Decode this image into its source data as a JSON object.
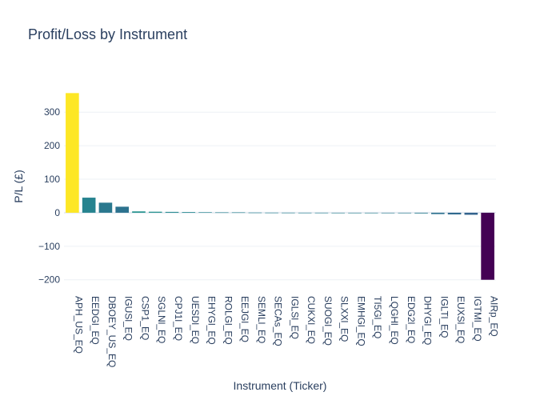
{
  "chart_data": {
    "type": "bar",
    "title": "Profit/Loss by Instrument",
    "xlabel": "Instrument (Ticker)",
    "ylabel": "P/L (£)",
    "ylim": [
      -215,
      365
    ],
    "yticks": [
      -200,
      -100,
      0,
      100,
      200,
      300
    ],
    "ytick_labels": [
      "−200",
      "−100",
      "0",
      "100",
      "200",
      "300"
    ],
    "grid": true,
    "categories": [
      "APH_US_EQ",
      "EEDGl_EQ",
      "DBOEY_US_EQ",
      "IGUSl_EQ",
      "CSP1_EQ",
      "SGLNl_EQ",
      "CPJ1l_EQ",
      "UESDl_EQ",
      "EHYGl_EQ",
      "ROLGl_EQ",
      "EEJGl_EQ",
      "SEMLl_EQ",
      "SECAs_EQ",
      "IGLSl_EQ",
      "CUKXl_EQ",
      "SUOGl_EQ",
      "SLXXl_EQ",
      "EMHGl_EQ",
      "TI5Gl_EQ",
      "LQGHl_EQ",
      "EDG2l_EQ",
      "DHYGl_EQ",
      "IGLTl_EQ",
      "EUXSl_EQ",
      "IGTMl_EQ",
      "AIRp_EQ"
    ],
    "values": [
      357,
      45,
      30,
      18,
      4,
      3,
      2.5,
      2,
      1.5,
      1,
      1,
      0.5,
      0.3,
      0.2,
      0.1,
      0.1,
      -0.2,
      -0.3,
      -0.5,
      -1,
      -1.5,
      -2,
      -4,
      -5,
      -6,
      -200
    ],
    "colors": [
      "#fde725",
      "#26838f",
      "#2a788e",
      "#2c728e",
      "#21918c",
      "#22908c",
      "#23898e",
      "#23888e",
      "#24868e",
      "#25858e",
      "#25848e",
      "#26828e",
      "#26828e",
      "#26828e",
      "#26828e",
      "#26828e",
      "#26818e",
      "#26818e",
      "#27808e",
      "#277f8e",
      "#287d8e",
      "#297b8e",
      "#2d718e",
      "#306a8e",
      "#33638d",
      "#440154"
    ]
  }
}
